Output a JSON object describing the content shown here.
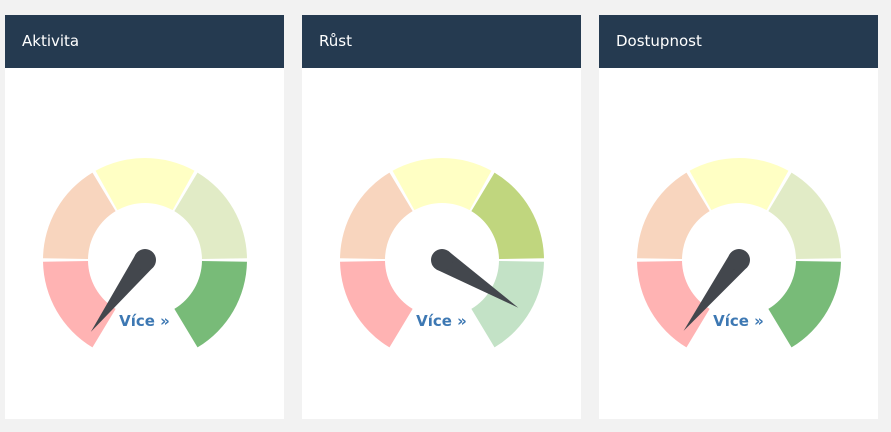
{
  "colors": {
    "header_bg": "#253a50",
    "link": "#3d78b3",
    "needle": "#43474d",
    "segments_dim": [
      "#ffb3b3",
      "#f8d5be",
      "#ffffc4",
      "#e1ebc6",
      "#c3e2c6"
    ],
    "segments_bright": [
      "#ff8a8a",
      "#f3b08a",
      "#ffff88",
      "#c0d67e",
      "#78bb78"
    ]
  },
  "gauges": [
    {
      "title": "Aktivita",
      "link_label": "Více »",
      "active_segment": 4,
      "needle_angle_deg": 233
    },
    {
      "title": "Růst",
      "link_label": "Více »",
      "active_segment": 3,
      "needle_angle_deg": 328
    },
    {
      "title": "Dostupnost",
      "link_label": "Více »",
      "active_segment": 4,
      "needle_angle_deg": 232
    }
  ]
}
